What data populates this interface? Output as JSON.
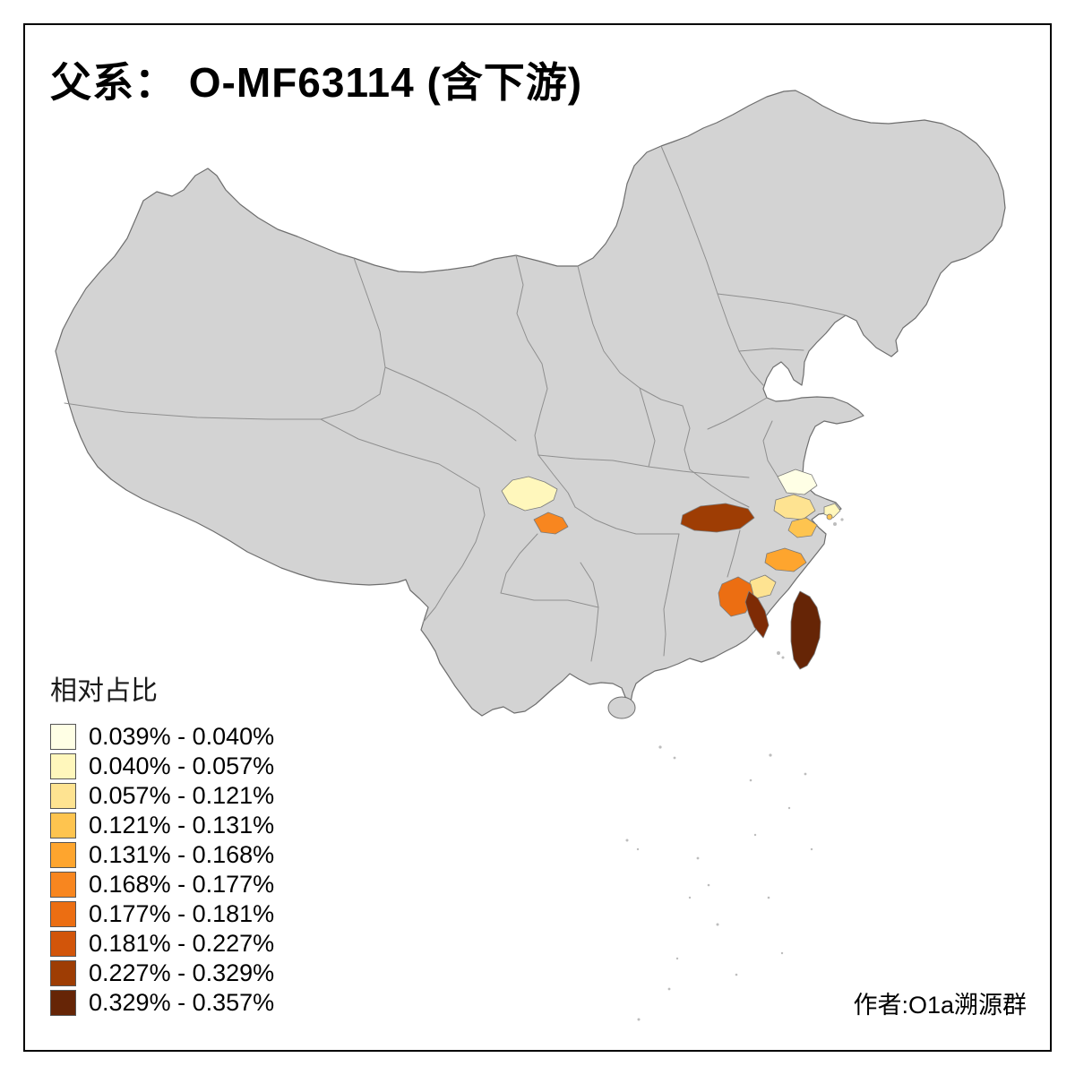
{
  "title": "父系： O-MF63114 (含下游)",
  "credit": "作者:O1a溯源群",
  "legend": {
    "title": "相对占比",
    "items": [
      {
        "label": "0.039% - 0.040%",
        "color": "#FFFFE5"
      },
      {
        "label": "0.040% - 0.057%",
        "color": "#FFF7BC"
      },
      {
        "label": "0.057% - 0.121%",
        "color": "#FEE391"
      },
      {
        "label": "0.121% - 0.131%",
        "color": "#FEC44F"
      },
      {
        "label": "0.131% - 0.168%",
        "color": "#FEA52E"
      },
      {
        "label": "0.168% - 0.177%",
        "color": "#F8861F"
      },
      {
        "label": "0.177% - 0.181%",
        "color": "#EC6E12"
      },
      {
        "label": "0.181% - 0.227%",
        "color": "#D2550A"
      },
      {
        "label": "0.227% - 0.329%",
        "color": "#9E3D04"
      },
      {
        "label": "0.329% - 0.357%",
        "color": "#662506"
      }
    ]
  },
  "map": {
    "land_fill": "#D3D3D3",
    "outline_stroke": "#6E6E6E",
    "border_stroke": "#8F8F8F",
    "island_fill": "#BDBDBD",
    "regions": [
      {
        "id": "sichuan",
        "color": "#FFF7BC"
      },
      {
        "id": "chongqing",
        "color": "#F8861F"
      },
      {
        "id": "hubei",
        "color": "#9E3D04"
      },
      {
        "id": "jiangsu-south",
        "color": "#FFFFE5"
      },
      {
        "id": "shanghai",
        "color": "#FFF7BC"
      },
      {
        "id": "zhejiang-north",
        "color": "#FEE391"
      },
      {
        "id": "zhejiang-east",
        "color": "#FEC44F"
      },
      {
        "id": "zhejiang-south-coast",
        "color": "#FEA52E"
      },
      {
        "id": "fujian-mid",
        "color": "#FEE391"
      },
      {
        "id": "fujian-inland",
        "color": "#EC6E12"
      },
      {
        "id": "fujian-coast",
        "color": "#7E2B05"
      },
      {
        "id": "zhoushan-island",
        "color": "#FEC44F"
      },
      {
        "id": "taiwan",
        "color": "#662506"
      }
    ]
  }
}
